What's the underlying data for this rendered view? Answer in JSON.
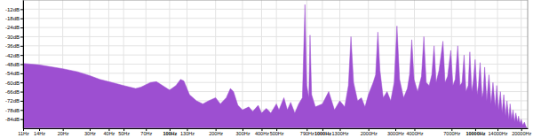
{
  "chart_data": {
    "type": "area",
    "log": "x",
    "grid": true,
    "color": "#9d4fd1",
    "xlim": [
      11,
      22050
    ],
    "ylim": [
      -90,
      -6
    ],
    "xticks": [
      {
        "value": 11,
        "label": "11Hz"
      },
      {
        "value": 14,
        "label": "14Hz"
      },
      {
        "value": 20,
        "label": "20Hz"
      },
      {
        "value": 30,
        "label": "30Hz"
      },
      {
        "value": 40,
        "label": "40Hz"
      },
      {
        "value": 50,
        "label": "50Hz"
      },
      {
        "value": 70,
        "label": "70Hz"
      },
      {
        "value": 100,
        "label": "100Hz"
      },
      {
        "value": 130,
        "label": "130Hz"
      },
      {
        "value": 200,
        "label": "200Hz"
      },
      {
        "value": 300,
        "label": "300Hz"
      },
      {
        "value": 400,
        "label": "400Hz"
      },
      {
        "value": 500,
        "label": "500Hz"
      },
      {
        "value": 790,
        "label": "790Hz"
      },
      {
        "value": 1000,
        "label": "1000Hz"
      },
      {
        "value": 1300,
        "label": "1300Hz"
      },
      {
        "value": 2000,
        "label": "2000Hz"
      },
      {
        "value": 3000,
        "label": "3000Hz"
      },
      {
        "value": 4000,
        "label": "4000Hz"
      },
      {
        "value": 7000,
        "label": "7000Hz"
      },
      {
        "value": 10000,
        "label": "10000Hz"
      },
      {
        "value": 14000,
        "label": "14000Hz"
      },
      {
        "value": 20000,
        "label": "20000Hz"
      }
    ],
    "yticks": [
      {
        "value": -12,
        "label": "-12dB"
      },
      {
        "value": -18,
        "label": "-18dB"
      },
      {
        "value": -24,
        "label": "-24dB"
      },
      {
        "value": -30,
        "label": "-30dB"
      },
      {
        "value": -36,
        "label": "-36dB"
      },
      {
        "value": -42,
        "label": "-42dB"
      },
      {
        "value": -48,
        "label": "-48dB"
      },
      {
        "value": -54,
        "label": "-54dB"
      },
      {
        "value": -60,
        "label": "-60dB"
      },
      {
        "value": -66,
        "label": "-66dB"
      },
      {
        "value": -72,
        "label": "-72dB"
      },
      {
        "value": -78,
        "label": "-78dB"
      },
      {
        "value": -84,
        "label": "-84dB"
      }
    ],
    "x": [
      11,
      14,
      20,
      25,
      30,
      35,
      40,
      50,
      60,
      65,
      75,
      82,
      90,
      100,
      110,
      118,
      124,
      135,
      150,
      165,
      180,
      200,
      215,
      235,
      250,
      262,
      280,
      300,
      330,
      350,
      380,
      400,
      430,
      460,
      500,
      520,
      560,
      590,
      620,
      660,
      700,
      740,
      769,
      790,
      815,
      830,
      850,
      900,
      1000,
      1100,
      1200,
      1300,
      1400,
      1480,
      1538,
      1600,
      1700,
      1800,
      1900,
      2000,
      2150,
      2230,
      2307,
      2380,
      2500,
      2650,
      2800,
      2950,
      3076,
      3200,
      3400,
      3600,
      3720,
      3845,
      3980,
      4200,
      4450,
      4614,
      4780,
      5000,
      5200,
      5383,
      5550,
      5800,
      6152,
      6350,
      6600,
      6921,
      7150,
      7400,
      7690,
      7950,
      8200,
      8459,
      8700,
      9000,
      9228,
      9500,
      9700,
      9997,
      10300,
      10500,
      10766,
      11100,
      11300,
      11535,
      11900,
      12304,
      12700,
      13073,
      13500,
      13842,
      14200,
      14611,
      15000,
      15380,
      15800,
      16149,
      16600,
      16918,
      17300,
      17687,
      18100,
      18456,
      18900,
      19225,
      19600,
      19994,
      20500,
      21000,
      21500,
      22050
    ],
    "values": [
      -47.5,
      -48.5,
      -51,
      -53,
      -55.5,
      -58,
      -59.5,
      -62,
      -64,
      -63,
      -60,
      -59.5,
      -62,
      -65,
      -62,
      -58,
      -59,
      -68,
      -72,
      -74,
      -72,
      -70,
      -74,
      -70,
      -64,
      -66,
      -75,
      -78,
      -76,
      -79,
      -75,
      -80,
      -77,
      -80,
      -74,
      -78,
      -70,
      -78,
      -73,
      -80,
      -74,
      -70,
      -9,
      -62,
      -70,
      -29,
      -68,
      -76,
      -74,
      -66,
      -78,
      -72,
      -76,
      -62,
      -30,
      -60,
      -72,
      -70,
      -76,
      -68,
      -60,
      -55,
      -27,
      -52,
      -70,
      -66,
      -72,
      -60,
      -23,
      -58,
      -70,
      -64,
      -55,
      -32,
      -58,
      -66,
      -56,
      -30,
      -60,
      -62,
      -55,
      -36,
      -60,
      -52,
      -33,
      -60,
      -56,
      -39,
      -62,
      -58,
      -36,
      -62,
      -60,
      -42,
      -66,
      -62,
      -40,
      -66,
      -60,
      -45,
      -68,
      -62,
      -47,
      -70,
      -66,
      -50,
      -72,
      -55,
      -74,
      -60,
      -76,
      -62,
      -78,
      -66,
      -80,
      -68,
      -82,
      -72,
      -84,
      -74,
      -84,
      -78,
      -86,
      -80,
      -86,
      -82,
      -87,
      -84,
      -88,
      -86,
      -89,
      -90
    ]
  }
}
